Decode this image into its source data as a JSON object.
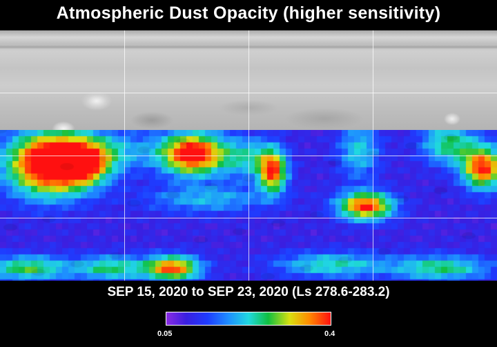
{
  "title": "Atmospheric Dust Opacity (higher sensitivity)",
  "date_range": "SEP 15, 2020 to SEP 23, 2020 (Ls 278.6-283.2)",
  "colorbar": {
    "min_label": "0.05",
    "max_label": "0.4",
    "colors": [
      "#8a2be2",
      "#3a1fe0",
      "#1e3cff",
      "#1e90ff",
      "#20d8e0",
      "#10c040",
      "#d8e010",
      "#ff8a00",
      "#ff1010"
    ]
  }
}
